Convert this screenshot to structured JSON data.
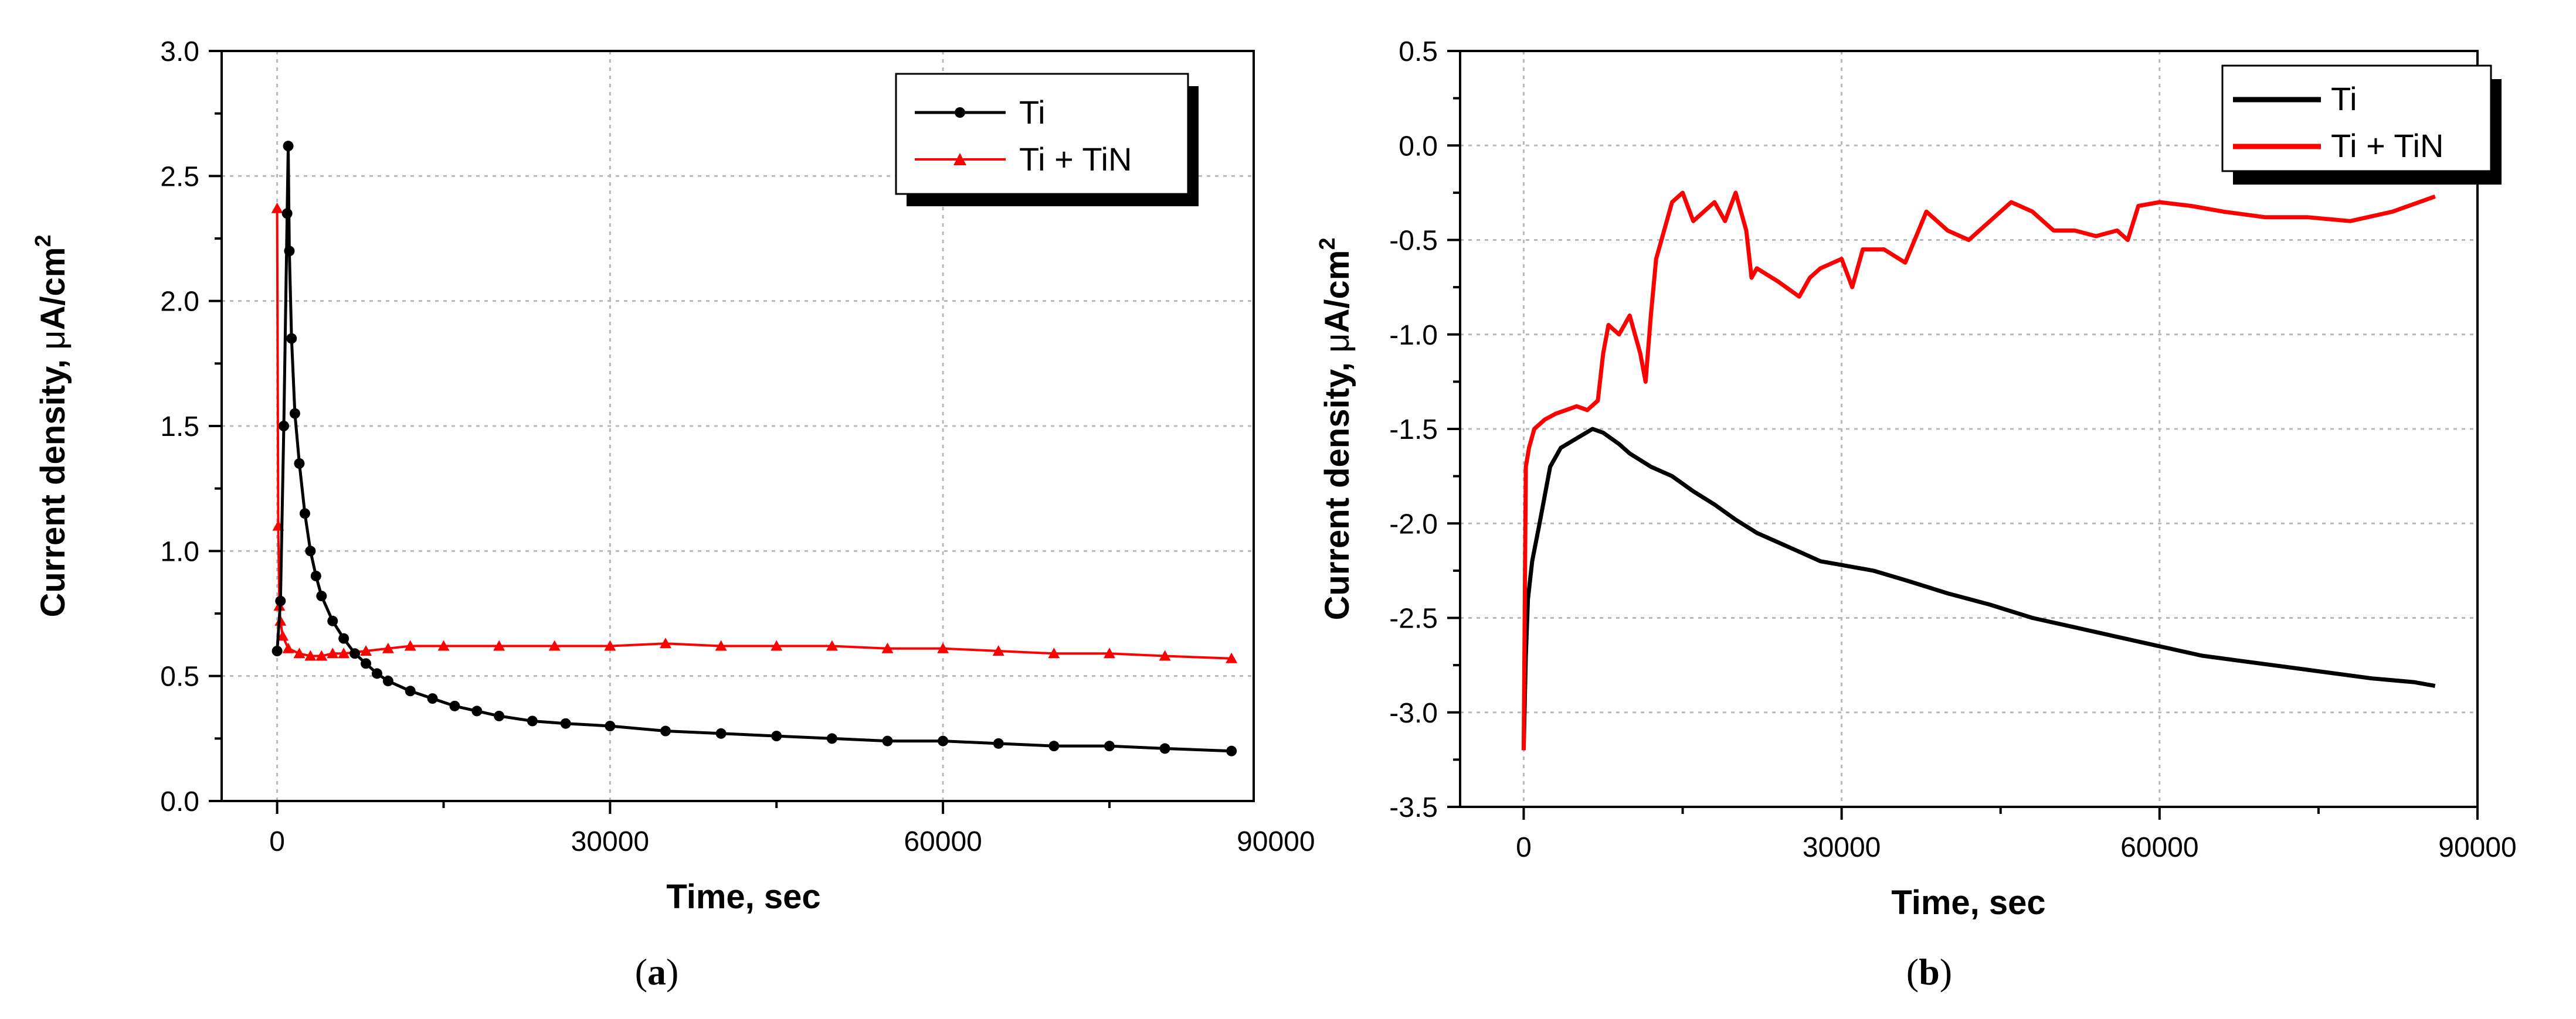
{
  "chart_data": [
    {
      "type": "line",
      "caption_letter": "a",
      "xlabel": "Time, sec",
      "ylabel_main": "Current density, ",
      "ylabel_mu": "μ",
      "ylabel_unit": "A/cm",
      "ylabel_exp": "2",
      "xlim": [
        -5000,
        88000
      ],
      "ylim": [
        0.0,
        3.0
      ],
      "x_ticks": [
        0,
        30000,
        60000,
        90000
      ],
      "y_ticks": [
        0.0,
        0.5,
        1.0,
        1.5,
        2.0,
        2.5,
        3.0
      ],
      "x_tick_labels": [
        "0",
        "30000",
        "60000",
        "90000"
      ],
      "y_tick_labels": [
        "0.0",
        "0.5",
        "1.0",
        "1.5",
        "2.0",
        "2.5",
        "3.0"
      ],
      "grid": true,
      "legend_position": "top-right",
      "series": [
        {
          "name": "Ti",
          "color": "#000000",
          "marker": "circle",
          "x": [
            0,
            300,
            600,
            900,
            1000,
            1100,
            1300,
            1600,
            2000,
            2500,
            3000,
            3500,
            4000,
            5000,
            6000,
            7000,
            8000,
            9000,
            10000,
            12000,
            14000,
            16000,
            18000,
            20000,
            23000,
            26000,
            30000,
            35000,
            40000,
            45000,
            50000,
            55000,
            60000,
            65000,
            70000,
            75000,
            80000,
            86000
          ],
          "y": [
            0.6,
            0.8,
            1.5,
            2.35,
            2.62,
            2.2,
            1.85,
            1.55,
            1.35,
            1.15,
            1.0,
            0.9,
            0.82,
            0.72,
            0.65,
            0.59,
            0.55,
            0.51,
            0.48,
            0.44,
            0.41,
            0.38,
            0.36,
            0.34,
            0.32,
            0.31,
            0.3,
            0.28,
            0.27,
            0.26,
            0.25,
            0.24,
            0.24,
            0.23,
            0.22,
            0.22,
            0.21,
            0.2
          ]
        },
        {
          "name": "Ti + TiN",
          "color": "#ff0000",
          "marker": "triangle",
          "x": [
            0,
            100,
            200,
            300,
            500,
            1000,
            2000,
            3000,
            4000,
            5000,
            6000,
            8000,
            10000,
            12000,
            15000,
            20000,
            25000,
            30000,
            35000,
            40000,
            45000,
            50000,
            55000,
            60000,
            65000,
            70000,
            75000,
            80000,
            86000
          ],
          "y": [
            2.37,
            1.1,
            0.78,
            0.72,
            0.66,
            0.61,
            0.59,
            0.58,
            0.58,
            0.59,
            0.59,
            0.6,
            0.61,
            0.62,
            0.62,
            0.62,
            0.62,
            0.62,
            0.63,
            0.62,
            0.62,
            0.62,
            0.61,
            0.61,
            0.6,
            0.59,
            0.59,
            0.58,
            0.57
          ]
        }
      ]
    },
    {
      "type": "line",
      "caption_letter": "b",
      "xlabel": "Time, sec",
      "ylabel_main": "Current density, ",
      "ylabel_mu": "μ",
      "ylabel_unit": "A/cm",
      "ylabel_exp": "2",
      "xlim": [
        -6000,
        90000
      ],
      "ylim": [
        -3.5,
        0.5
      ],
      "x_ticks": [
        0,
        30000,
        60000,
        90000
      ],
      "y_ticks": [
        -3.5,
        -3.0,
        -2.5,
        -2.0,
        -1.5,
        -1.0,
        -0.5,
        0.0,
        0.5
      ],
      "x_tick_labels": [
        "0",
        "30000",
        "60000",
        "90000"
      ],
      "y_tick_labels": [
        "-3.5",
        "-3.0",
        "-2.5",
        "-2.0",
        "-1.5",
        "-1.0",
        "-0.5",
        "0.0",
        "0.5"
      ],
      "grid": true,
      "legend_position": "top-right",
      "series": [
        {
          "name": "Ti",
          "color": "#000000",
          "marker": "none",
          "x": [
            0,
            200,
            400,
            800,
            1500,
            2500,
            3500,
            5000,
            6500,
            7500,
            9000,
            10000,
            12000,
            14000,
            16000,
            18000,
            20000,
            22000,
            24000,
            26000,
            28000,
            30000,
            33000,
            36000,
            40000,
            44000,
            48000,
            52000,
            56000,
            60000,
            64000,
            68000,
            72000,
            76000,
            80000,
            84000,
            86000
          ],
          "y": [
            -3.2,
            -2.7,
            -2.4,
            -2.2,
            -2.0,
            -1.7,
            -1.6,
            -1.55,
            -1.5,
            -1.52,
            -1.58,
            -1.63,
            -1.7,
            -1.75,
            -1.83,
            -1.9,
            -1.98,
            -2.05,
            -2.1,
            -2.15,
            -2.2,
            -2.22,
            -2.25,
            -2.3,
            -2.37,
            -2.43,
            -2.5,
            -2.55,
            -2.6,
            -2.65,
            -2.7,
            -2.73,
            -2.76,
            -2.79,
            -2.82,
            -2.84,
            -2.86
          ]
        },
        {
          "name": "Ti + TiN",
          "color": "#ff0000",
          "marker": "none",
          "x": [
            0,
            200,
            500,
            1000,
            2000,
            3000,
            4000,
            5000,
            6000,
            7000,
            7500,
            8000,
            9000,
            10000,
            11000,
            11500,
            12000,
            12500,
            13000,
            14000,
            15000,
            16000,
            17000,
            18000,
            19000,
            20000,
            21000,
            21500,
            22000,
            24000,
            26000,
            27000,
            28000,
            30000,
            31000,
            32000,
            34000,
            36000,
            38000,
            40000,
            42000,
            44000,
            46000,
            48000,
            50000,
            52000,
            54000,
            56000,
            57000,
            58000,
            60000,
            63000,
            66000,
            70000,
            74000,
            78000,
            82000,
            86000
          ],
          "y": [
            -3.2,
            -1.7,
            -1.6,
            -1.5,
            -1.45,
            -1.42,
            -1.4,
            -1.38,
            -1.4,
            -1.35,
            -1.1,
            -0.95,
            -1.0,
            -0.9,
            -1.1,
            -1.25,
            -0.9,
            -0.6,
            -0.5,
            -0.3,
            -0.25,
            -0.4,
            -0.35,
            -0.3,
            -0.4,
            -0.25,
            -0.45,
            -0.7,
            -0.65,
            -0.72,
            -0.8,
            -0.7,
            -0.65,
            -0.6,
            -0.75,
            -0.55,
            -0.55,
            -0.62,
            -0.35,
            -0.45,
            -0.5,
            -0.4,
            -0.3,
            -0.35,
            -0.45,
            -0.45,
            -0.48,
            -0.45,
            -0.5,
            -0.32,
            -0.3,
            -0.32,
            -0.35,
            -0.38,
            -0.38,
            -0.4,
            -0.35,
            -0.27
          ]
        }
      ]
    }
  ]
}
